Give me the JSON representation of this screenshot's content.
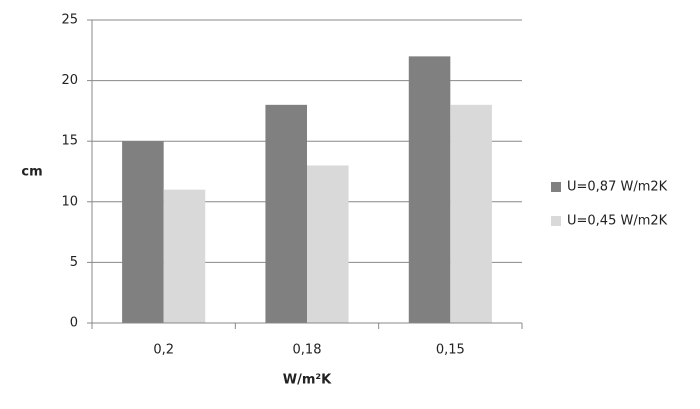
{
  "chart_data": {
    "type": "bar",
    "categories": [
      "0,2",
      "0,18",
      "0,15"
    ],
    "series": [
      {
        "name": "U=0,87 W/m2K",
        "color": "#808080",
        "values": [
          15,
          18,
          22
        ]
      },
      {
        "name": "U=0,45 W/m2K",
        "color": "#d9d9d9",
        "values": [
          11,
          13,
          18
        ]
      }
    ],
    "ylim": [
      0,
      25
    ],
    "yticks": [
      0,
      5,
      10,
      15,
      20,
      25
    ],
    "grid": true,
    "y_label": "cm",
    "x_label": "W/m²K",
    "legend": "right"
  }
}
